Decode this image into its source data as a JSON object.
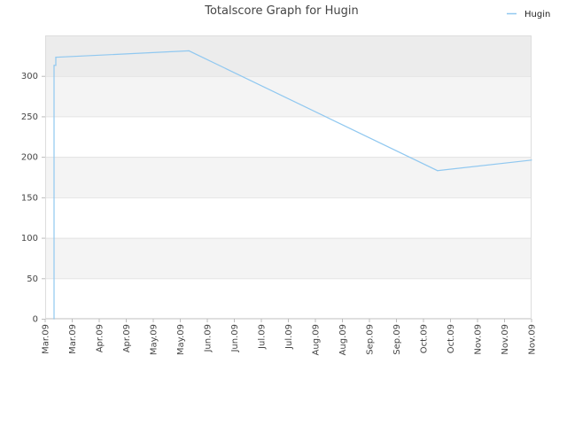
{
  "chart_data": {
    "type": "line",
    "title": "Totalscore Graph for Hugin",
    "xlabel": "",
    "ylabel": "",
    "ylim": [
      0,
      350
    ],
    "y_ticks": [
      "0",
      "50",
      "100",
      "150",
      "200",
      "250",
      "300"
    ],
    "x_tick_labels": [
      "Mar.09",
      "Mar.09",
      "Apr.09",
      "Apr.09",
      "May.09",
      "May.09",
      "Jun.09",
      "Jun.09",
      "Jul.09",
      "Jul.09",
      "Aug.09",
      "Aug.09",
      "Sep.09",
      "Sep.09",
      "Oct.09",
      "Oct.09",
      "Nov.09",
      "Nov.09",
      "Nov.09"
    ],
    "xlim": [
      "2009-03-01",
      "2009-11-30"
    ],
    "grid": true,
    "legend_position": "top-right",
    "series": [
      {
        "name": "Hugin",
        "color": "#90c8f0",
        "x": [
          "2009-03-06",
          "2009-03-06",
          "2009-03-07",
          "2009-03-07",
          "2009-05-21",
          "2009-10-08",
          "2009-11-30"
        ],
        "y": [
          0,
          313,
          313,
          323,
          331,
          183,
          196
        ]
      }
    ]
  }
}
